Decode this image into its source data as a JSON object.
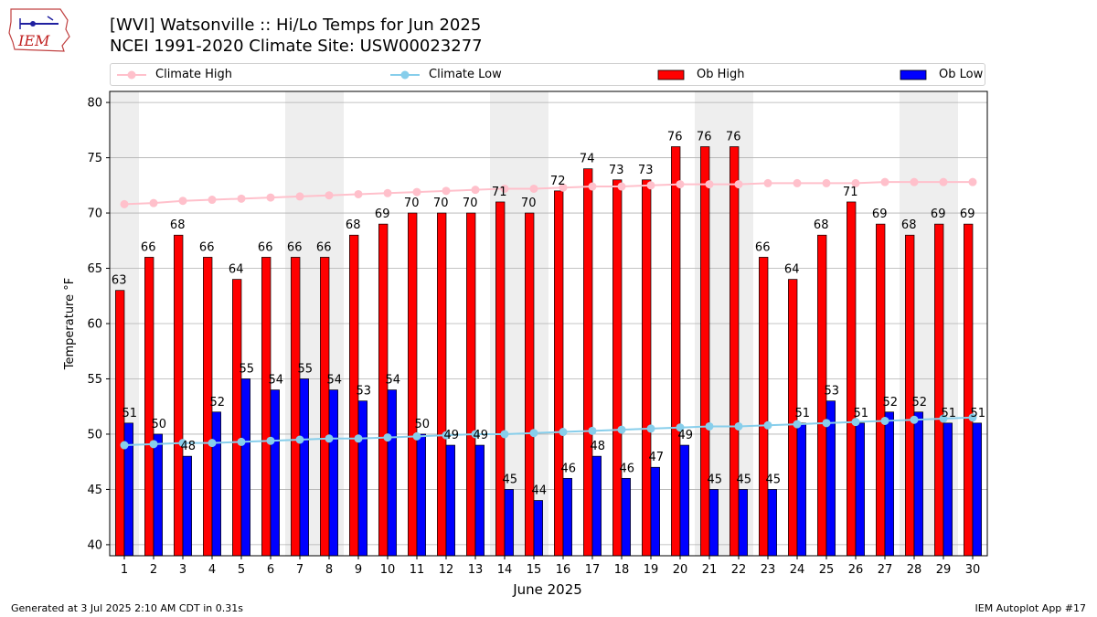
{
  "header": {
    "logo_text": "IEM",
    "title_line1": "[WVI] Watsonville :: Hi/Lo Temps for Jun 2025",
    "title_line2": "NCEI 1991-2020 Climate Site: USW00023277"
  },
  "legend": {
    "placement": "top, above plot",
    "items": [
      {
        "label": "Climate High",
        "color": "#ffc0cb",
        "kind": "line-marker"
      },
      {
        "label": "Climate Low",
        "color": "#87ceeb",
        "kind": "line-marker"
      },
      {
        "label": "Ob High",
        "color": "#ff0000",
        "kind": "bar"
      },
      {
        "label": "Ob Low",
        "color": "#0000ff",
        "kind": "bar"
      }
    ]
  },
  "chart_data": {
    "type": "bar",
    "xlabel": "June 2025",
    "ylabel": "Temperature °F",
    "ylim": [
      39,
      81
    ],
    "yticks": [
      40,
      45,
      50,
      55,
      60,
      65,
      70,
      75,
      80
    ],
    "grid": "horizontal",
    "weekend_shading": true,
    "shaded_days": [
      1,
      7,
      8,
      14,
      15,
      21,
      22,
      28,
      29
    ],
    "categories": [
      "1",
      "2",
      "3",
      "4",
      "5",
      "6",
      "7",
      "8",
      "9",
      "10",
      "11",
      "12",
      "13",
      "14",
      "15",
      "16",
      "17",
      "18",
      "19",
      "20",
      "21",
      "22",
      "23",
      "24",
      "25",
      "26",
      "27",
      "28",
      "29",
      "30"
    ],
    "series": [
      {
        "name": "Ob High",
        "color": "#ff0000",
        "kind": "bar",
        "values": [
          63,
          66,
          68,
          66,
          64,
          66,
          66,
          66,
          68,
          69,
          70,
          70,
          70,
          71,
          70,
          72,
          74,
          73,
          73,
          76,
          76,
          76,
          66,
          64,
          68,
          71,
          69,
          68,
          69,
          69
        ]
      },
      {
        "name": "Ob Low",
        "color": "#0000ff",
        "kind": "bar",
        "values": [
          51,
          50,
          48,
          52,
          55,
          54,
          55,
          54,
          53,
          54,
          50,
          49,
          49,
          45,
          44,
          46,
          48,
          46,
          47,
          49,
          45,
          45,
          45,
          51,
          53,
          51,
          52,
          52,
          51,
          51
        ]
      },
      {
        "name": "Climate High",
        "color": "#ffc0cb",
        "kind": "line",
        "values": [
          70.8,
          70.9,
          71.1,
          71.2,
          71.3,
          71.4,
          71.5,
          71.6,
          71.7,
          71.8,
          71.9,
          72.0,
          72.1,
          72.2,
          72.2,
          72.3,
          72.4,
          72.4,
          72.5,
          72.6,
          72.6,
          72.6,
          72.7,
          72.7,
          72.7,
          72.7,
          72.8,
          72.8,
          72.8,
          72.8
        ]
      },
      {
        "name": "Climate Low",
        "color": "#87ceeb",
        "kind": "line",
        "values": [
          49.0,
          49.1,
          49.2,
          49.2,
          49.3,
          49.4,
          49.5,
          49.6,
          49.6,
          49.7,
          49.8,
          49.9,
          50.0,
          50.0,
          50.1,
          50.2,
          50.3,
          50.4,
          50.5,
          50.6,
          50.7,
          50.7,
          50.8,
          50.9,
          51.0,
          51.1,
          51.2,
          51.3,
          51.4,
          51.5
        ]
      }
    ]
  },
  "footer": {
    "generated": "Generated at 3 Jul 2025 2:10 AM CDT in 0.31s",
    "app": "IEM Autoplot App #17"
  }
}
